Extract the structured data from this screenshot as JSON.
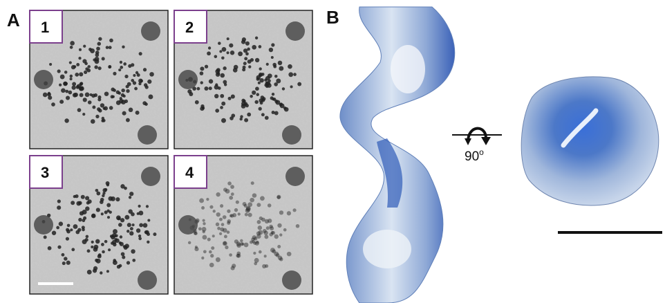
{
  "panel_a": {
    "label": "A",
    "tiles": [
      "1",
      "2",
      "3",
      "4"
    ]
  },
  "panel_b": {
    "label": "B",
    "rotation": "90",
    "rotation_unit": "o"
  }
}
